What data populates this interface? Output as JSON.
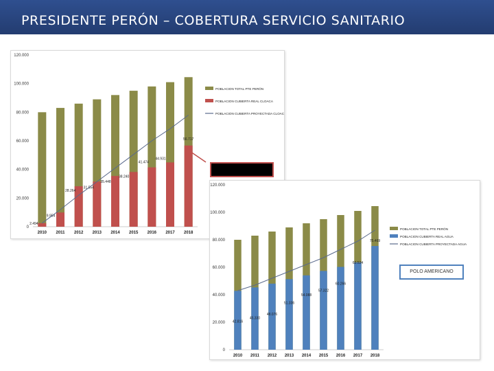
{
  "title": "PRESIDENTE PERÓN – COBERTURA SERVICIO SANITARIO",
  "colors": {
    "header": "#2b4a86",
    "olive": "#8b8b48",
    "red": "#c0504d",
    "blue": "#4f81bd",
    "line": "#5a6a8c"
  },
  "callout_label": "POLO AMERICANO",
  "chart_data": [
    {
      "type": "bar",
      "categories": [
        "2010",
        "2011",
        "2012",
        "2013",
        "2014",
        "2015",
        "2016",
        "2017",
        "2018"
      ],
      "ylim": [
        0,
        120000
      ],
      "yticks": [
        "0",
        "20.000",
        "40.000",
        "60.000",
        "80.000",
        "100.000",
        "120.000"
      ],
      "series": [
        {
          "name": "POBLACION TOTAL PTE PERÓN",
          "values": [
            80000,
            83000,
            86000,
            89000,
            92000,
            95000,
            98000,
            101000,
            104500
          ]
        },
        {
          "name": "POBLACION CUBIERTA REAL CLOACA",
          "values": [
            2494,
            9954,
            28264,
            31554,
            35448,
            38240,
            41474,
            44931,
            56717
          ],
          "labels": [
            "2.494",
            "9.954",
            "28.264",
            "31.554",
            "35.448",
            "38.240",
            "41.474",
            "44.931",
            "56.717"
          ]
        },
        {
          "name": "POBLACION CUBIERTA PROYECTADA CLOACA",
          "type": "line",
          "values": [
            2494,
            12000,
            22000,
            31500,
            41000,
            50500,
            60000,
            68500,
            78000
          ]
        }
      ],
      "legend": [
        "POBLACION TOTAL PTE PERÓN",
        "POBLACION CUBIERTA REAL CLOACA",
        "POBLACION CUBIERTA PROYECTADA CLOACA"
      ]
    },
    {
      "type": "bar",
      "categories": [
        "2010",
        "2011",
        "2012",
        "2013",
        "2014",
        "2015",
        "2016",
        "2017",
        "2018"
      ],
      "ylim": [
        0,
        120000
      ],
      "yticks": [
        "0",
        "20.000",
        "40.000",
        "60.000",
        "80.000",
        "100.000",
        "120.000"
      ],
      "series": [
        {
          "name": "POBLACION TOTAL PTE PERÓN",
          "values": [
            80000,
            83000,
            86000,
            89000,
            92000,
            95000,
            98000,
            101000,
            104500
          ]
        },
        {
          "name": "POBLACION CUBIERTA REAL AGUA",
          "values": [
            42816,
            45330,
            48076,
            51336,
            54088,
            57322,
            60266,
            63524,
            75469
          ],
          "labels": [
            "42.816",
            "45.330",
            "48.076",
            "51.336",
            "54.088",
            "57.322",
            "60.266",
            "63.524",
            "75.469"
          ]
        },
        {
          "name": "POBLACION CUBIERTA PROYECTADA AGUA",
          "type": "line",
          "values": [
            43000,
            47000,
            52000,
            57000,
            62000,
            67000,
            73000,
            79000,
            87000
          ]
        }
      ],
      "legend": [
        "POBLACION TOTAL PTE PERÓN",
        "POBLACION CUBIERTA REAL AGUA",
        "POBLACION CUBIERTA PROYECTADA AGUA"
      ]
    }
  ]
}
